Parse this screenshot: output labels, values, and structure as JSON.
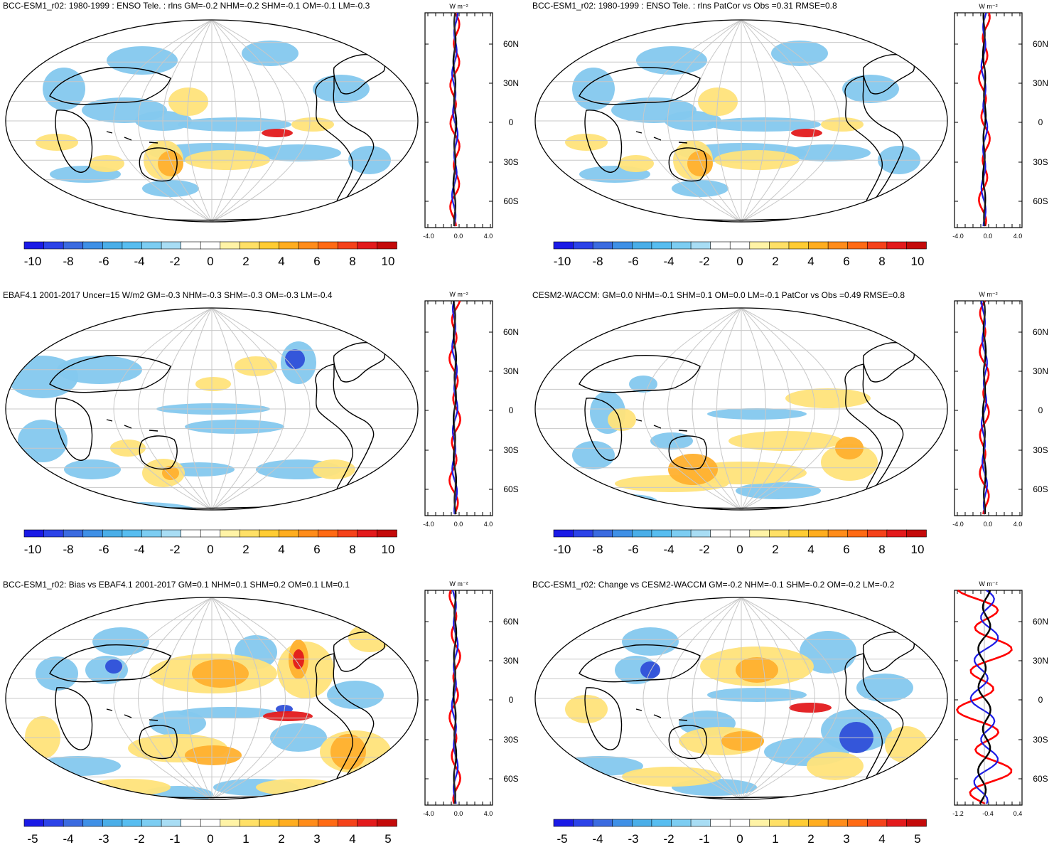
{
  "colors": {
    "scale": [
      "#1a1ae6",
      "#2c43e8",
      "#3b6be0",
      "#3f90e6",
      "#4aaee8",
      "#57bdf0",
      "#7ccdf2",
      "#a8ddf4",
      "#ffffff",
      "#ffffff",
      "#fff3a6",
      "#ffe066",
      "#ffcc33",
      "#ffad1f",
      "#ff8c1a",
      "#ff6a14",
      "#f5421a",
      "#e31a1c",
      "#c40a0a"
    ],
    "ocean": "#ffffff",
    "blue_light": "#84c8ee",
    "blue_mid": "#4aa6e6",
    "blue_dark": "#2f4fd8",
    "yellow": "#ffe37a",
    "orange": "#ffb02e",
    "red": "#e31a1c",
    "line_red": "#ff0000",
    "line_blue": "#1a1ae6",
    "line_black": "#000000"
  },
  "panels": [
    {
      "title": "BCC-ESM1_r02: 1980-1999 : ENSO Tele. : rlns GM=-0.2 NHM=-0.2 SHM=-0.1 OM=-0.1 LM=-0.3",
      "colorbar_labels": [
        "-10",
        "-8",
        "-6",
        "-4",
        "-2",
        "0",
        "2",
        "4",
        "6",
        "8",
        "10"
      ],
      "zonal_unit": "W m⁻²",
      "zonal_xticks": [
        "-4.0",
        "0.0",
        "4.0"
      ],
      "lat_ticks": [
        "60N",
        "30N",
        "0",
        "30S",
        "60S"
      ]
    },
    {
      "title": "BCC-ESM1_r02: 1980-1999 : ENSO Tele. : rlns PatCor vs Obs =0.31 RMSE=0.8",
      "colorbar_labels": [
        "-10",
        "-8",
        "-6",
        "-4",
        "-2",
        "0",
        "2",
        "4",
        "6",
        "8",
        "10"
      ],
      "zonal_unit": "W m⁻²",
      "zonal_xticks": [
        "-4.0",
        "0.0",
        "4.0"
      ],
      "lat_ticks": [
        "60N",
        "30N",
        "0",
        "30S",
        "60S"
      ]
    },
    {
      "title": "EBAF4.1 2001-2017 Uncer=15 W/m2 GM=-0.3 NHM=-0.3 SHM=-0.3 OM=-0.3 LM=-0.4",
      "colorbar_labels": [
        "-10",
        "-8",
        "-6",
        "-4",
        "-2",
        "0",
        "2",
        "4",
        "6",
        "8",
        "10"
      ],
      "zonal_unit": "W m⁻²",
      "zonal_xticks": [
        "-4.0",
        "0.0",
        "4.0"
      ],
      "lat_ticks": [
        "60N",
        "30N",
        "0",
        "30S",
        "60S"
      ]
    },
    {
      "title": "CESM2-WACCM: GM=0.0 NHM=-0.1 SHM=0.1 OM=0.0 LM=-0.1 PatCor vs Obs =0.49 RMSE=0.8",
      "colorbar_labels": [
        "-10",
        "-8",
        "-6",
        "-4",
        "-2",
        "0",
        "2",
        "4",
        "6",
        "8",
        "10"
      ],
      "zonal_unit": "W m⁻²",
      "zonal_xticks": [
        "-4.0",
        "0.0",
        "4.0"
      ],
      "lat_ticks": [
        "60N",
        "30N",
        "0",
        "30S",
        "60S"
      ]
    },
    {
      "title": "BCC-ESM1_r02: Bias vs EBAF4.1 2001-2017 GM=0.1 NHM=0.1 SHM=0.2 OM=0.1 LM=0.1",
      "colorbar_labels": [
        "-5",
        "-4",
        "-3",
        "-2",
        "-1",
        "0",
        "1",
        "2",
        "3",
        "4",
        "5"
      ],
      "zonal_unit": "W m⁻²",
      "zonal_xticks": [
        "-4.0",
        "0.0",
        "4.0"
      ],
      "lat_ticks": [
        "60N",
        "30N",
        "0",
        "30S",
        "60S"
      ]
    },
    {
      "title": "BCC-ESM1_r02: Change vs CESM2-WACCM GM=-0.2 NHM=-0.1 SHM=-0.2 OM=-0.2 LM=-0.2",
      "colorbar_labels": [
        "-5",
        "-4",
        "-3",
        "-2",
        "-1",
        "0",
        "1",
        "2",
        "3",
        "4",
        "5"
      ],
      "zonal_unit": "W m⁻²",
      "zonal_xticks": [
        "-1.2",
        "-0.4",
        "0.4"
      ],
      "lat_ticks": [
        "60N",
        "30N",
        "0",
        "30S",
        "60S"
      ]
    }
  ]
}
